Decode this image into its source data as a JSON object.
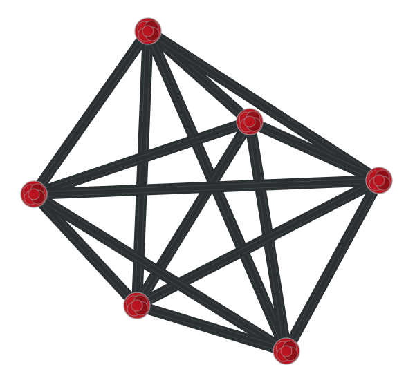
{
  "graph": {
    "type": "complete-graph",
    "colors": {
      "background": "#ffffff",
      "edge": "#2b3033",
      "edge_highlight": "#5a5f62",
      "node_fill": "#b81520",
      "node_dark": "#8e0f16",
      "node_outline": "#9a9a9a"
    },
    "nodes": [
      {
        "id": "n1",
        "name": "node-top"
      },
      {
        "id": "n2",
        "name": "node-upper-middle"
      },
      {
        "id": "n3",
        "name": "node-right"
      },
      {
        "id": "n4",
        "name": "node-left"
      },
      {
        "id": "n5",
        "name": "node-lower-left"
      },
      {
        "id": "n6",
        "name": "node-bottom-right"
      }
    ],
    "edges": [
      [
        "n1",
        "n2"
      ],
      [
        "n1",
        "n3"
      ],
      [
        "n1",
        "n4"
      ],
      [
        "n1",
        "n5"
      ],
      [
        "n1",
        "n6"
      ],
      [
        "n2",
        "n3"
      ],
      [
        "n2",
        "n4"
      ],
      [
        "n2",
        "n5"
      ],
      [
        "n2",
        "n6"
      ],
      [
        "n3",
        "n4"
      ],
      [
        "n3",
        "n5"
      ],
      [
        "n3",
        "n6"
      ],
      [
        "n4",
        "n5"
      ],
      [
        "n4",
        "n6"
      ],
      [
        "n5",
        "n6"
      ]
    ]
  }
}
